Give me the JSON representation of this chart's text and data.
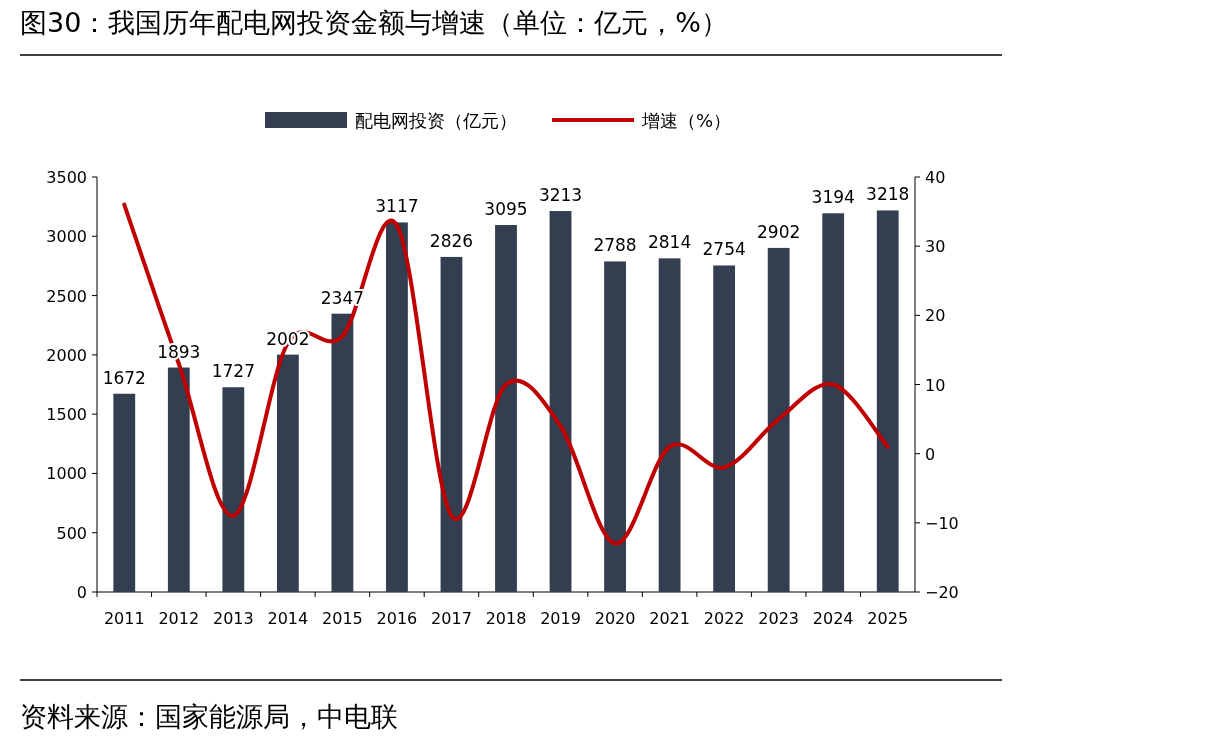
{
  "chart_data": {
    "type": "bar",
    "title": "图30：我国历年配电网投资金额与增速（单位：亿元，%）",
    "annotations": [
      "资料来源：国家能源局，中电联"
    ],
    "categories": [
      "2011",
      "2012",
      "2013",
      "2014",
      "2015",
      "2016",
      "2017",
      "2018",
      "2019",
      "2020",
      "2021",
      "2022",
      "2023",
      "2024",
      "2025"
    ],
    "series": [
      {
        "name": "配电网投资（亿元）",
        "color": "#333f50",
        "values": [
          1672,
          1893,
          1727,
          2002,
          2347,
          3117,
          2826,
          3095,
          3213,
          2788,
          2814,
          2754,
          2902,
          3194,
          3218
        ],
        "value_labels": [
          "1672",
          "1893",
          "1727",
          "2002",
          "2347",
          "3117",
          "2826",
          "3095",
          "3213",
          "2788",
          "2814",
          "2754",
          "2902",
          "3194",
          "3218"
        ]
      },
      {
        "name": "增速（%）",
        "type": "line",
        "axis": "y2",
        "color": "#c00000",
        "values": [
          36,
          13,
          -9,
          16,
          17,
          33,
          -9,
          10,
          4,
          -13,
          1,
          -2,
          5,
          10,
          1
        ]
      }
    ],
    "ylim": [
      0,
      3500
    ],
    "yticks": [
      0,
      500,
      1000,
      1500,
      2000,
      2500,
      3000,
      3500
    ],
    "y2lim": [
      -20,
      40
    ],
    "y2ticks": [
      -20,
      -10,
      0,
      10,
      20,
      30,
      40
    ],
    "legend": "top"
  }
}
